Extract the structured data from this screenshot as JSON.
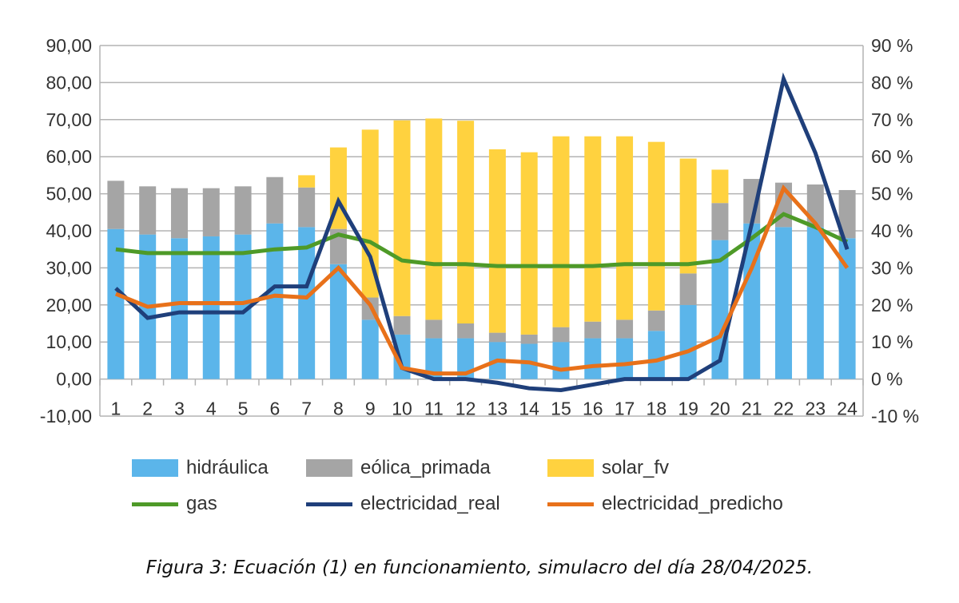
{
  "chart_data": {
    "type": "bar+line",
    "categories": [
      "1",
      "2",
      "3",
      "4",
      "5",
      "6",
      "7",
      "8",
      "9",
      "10",
      "11",
      "12",
      "13",
      "14",
      "15",
      "16",
      "17",
      "18",
      "19",
      "20",
      "21",
      "22",
      "23",
      "24"
    ],
    "left_axis": {
      "ylim": [
        -10,
        90
      ],
      "ticks": [
        "90,00",
        "80,00",
        "70,00",
        "60,00",
        "50,00",
        "40,00",
        "30,00",
        "20,00",
        "10,00",
        "0,00",
        "-10,00"
      ]
    },
    "right_axis": {
      "ylim": [
        -10,
        90
      ],
      "ticks": [
        "90 %",
        "80 %",
        "70 %",
        "60 %",
        "50 %",
        "40 %",
        "30 %",
        "20 %",
        "10 %",
        "0 %",
        "-10 %"
      ]
    },
    "grid": true,
    "legend_position": "bottom",
    "bar_series": [
      {
        "name": "hidráulica",
        "color": "#5bb5ea",
        "values": [
          40.5,
          39,
          38,
          38.5,
          39,
          42,
          41,
          31,
          16,
          12,
          11,
          11,
          10,
          9.5,
          10,
          11,
          11,
          13,
          20,
          37.5,
          42,
          41,
          41,
          38
        ]
      },
      {
        "name": "eólica_primada",
        "color": "#a5a5a5",
        "values": [
          13,
          13,
          13.5,
          13,
          13,
          12.5,
          10.7,
          9.5,
          6,
          5,
          5,
          4,
          2.5,
          2.5,
          4,
          4.5,
          5,
          5.5,
          8.5,
          10,
          12,
          12,
          11.5,
          13
        ]
      },
      {
        "name": "solar_fv",
        "color": "#ffd23f",
        "values": [
          0,
          0,
          0,
          0,
          0,
          0,
          3.3,
          22,
          45.3,
          52.8,
          54.3,
          54.7,
          49.5,
          49.2,
          51.5,
          50,
          49.5,
          45.5,
          31,
          9,
          0,
          0,
          0,
          0
        ]
      }
    ],
    "line_series": [
      {
        "name": "gas",
        "color": "#4e9a28",
        "axis": "right",
        "values": [
          35,
          34,
          34,
          34,
          34,
          35,
          35.5,
          39,
          37,
          32,
          31,
          31,
          30.5,
          30.5,
          30.5,
          30.5,
          31,
          31,
          31,
          32,
          38,
          44.5,
          41,
          37
        ]
      },
      {
        "name": "electricidad_real",
        "color": "#1f3f7a",
        "axis": "right",
        "values": [
          24.5,
          16.5,
          18,
          18,
          18,
          25,
          25,
          48,
          33,
          3,
          0,
          0,
          -1,
          -2.5,
          -3,
          -1.5,
          0,
          0,
          0,
          5,
          42,
          81,
          61,
          35
        ]
      },
      {
        "name": "electricidad_predicho",
        "color": "#e8711a",
        "axis": "right",
        "values": [
          23,
          19.5,
          20.5,
          20.5,
          20.5,
          22.5,
          22,
          30,
          20,
          3,
          1.5,
          1.5,
          5,
          4.5,
          2.5,
          3.5,
          4,
          5,
          7.5,
          11.5,
          30,
          51.5,
          42,
          30
        ]
      }
    ]
  },
  "caption": "Figura 3: Ecuación (1) en funcionamiento, simulacro del día 28/04/2025."
}
